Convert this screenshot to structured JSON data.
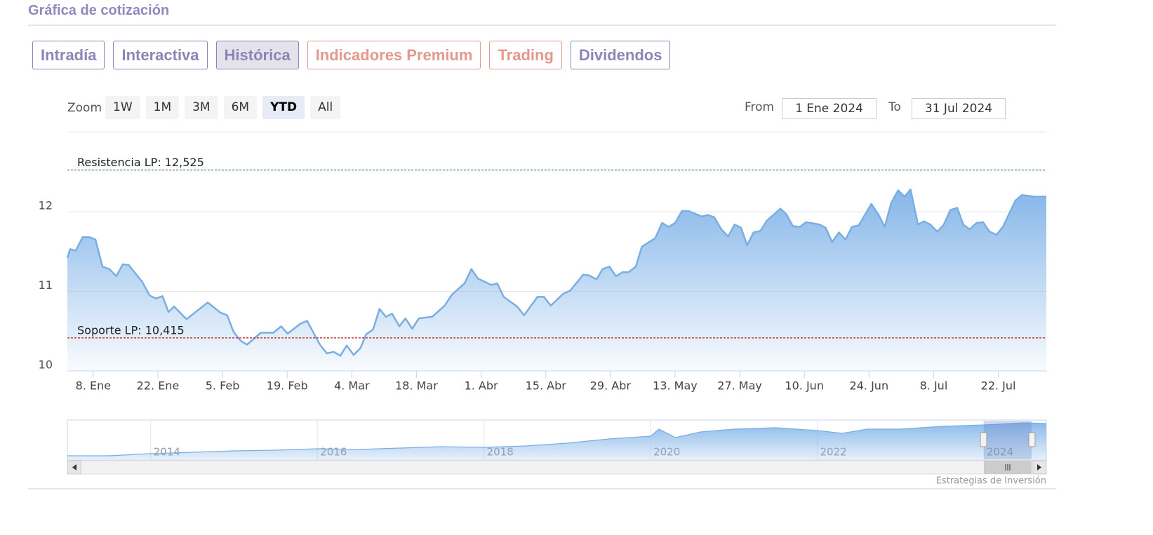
{
  "header": {
    "title": "Gráfica de cotización"
  },
  "tabs": [
    {
      "label": "Intradía",
      "color": "#8b86b8"
    },
    {
      "label": "Interactiva",
      "color": "#8b86b8"
    },
    {
      "label": "Histórica",
      "color": "#8b86b8"
    },
    {
      "label": "Indicadores Premium",
      "color": "#e3998e"
    },
    {
      "label": "Trading",
      "color": "#e3998e"
    },
    {
      "label": "Dividendos",
      "color": "#8b86b8"
    }
  ],
  "active_tab": 2,
  "range_selector": {
    "zoom_label": "Zoom",
    "buttons": [
      "1W",
      "1M",
      "3M",
      "6M",
      "YTD",
      "All"
    ],
    "selected": 4,
    "from_label": "From",
    "from": "1 Ene 2024",
    "to_label": "To",
    "to": "31 Jul 2024"
  },
  "chart_data": {
    "type": "area",
    "x": [
      2.4,
      3.0,
      4.2,
      5.7,
      7.2,
      8.5,
      10.0,
      11.5,
      13.0,
      14.4,
      15.7,
      18.6,
      20.2,
      21.5,
      23.0,
      24.3,
      25.5,
      28.2,
      32.8,
      35.6,
      37.0,
      38.4,
      39.9,
      41.3,
      44.3,
      47.0,
      48.7,
      50.1,
      52.8,
      54.3,
      57.1,
      58.6,
      60.1,
      61.5,
      62.9,
      64.4,
      65.9,
      67.1,
      68.6,
      70.0,
      71.4,
      72.7,
      74.3,
      75.6,
      77.1,
      78.5,
      81.4,
      84.1,
      85.7,
      88.4,
      89.9,
      91.3,
      94.2,
      95.5,
      96.9,
      99.8,
      101.3,
      104.2,
      105.6,
      107.1,
      109.8,
      111.3,
      114.1,
      115.4,
      117.0,
      118.3,
      119.8,
      121.2,
      122.6,
      123.9,
      125.5,
      126.8,
      129.7,
      131.2,
      132.6,
      134.0,
      135.5,
      136.9,
      139.8,
      141.1,
      142.5,
      144.0,
      145.5,
      146.9,
      148.3,
      149.6,
      151.0,
      152.5,
      153.9,
      156.8,
      158.1,
      159.5,
      161.0,
      162.4,
      165.3,
      166.6,
      168.0,
      169.5,
      170.9,
      172.3,
      173.8,
      176.5,
      178.1,
      179.4,
      180.8,
      182.3,
      183.7,
      185.0,
      186.6,
      187.9,
      189.3,
      190.8,
      192.2,
      193.6,
      195.1,
      196.4,
      197.8,
      199.3,
      200.7,
      202.1,
      203.6,
      205.0,
      206.3,
      207.7,
      209.1,
      211.9,
      214.4
    ],
    "series": [
      {
        "color": "#7aaee3",
        "values": [
          11.42,
          11.53,
          11.51,
          11.68,
          11.68,
          11.65,
          11.31,
          11.28,
          11.19,
          11.34,
          11.33,
          11.12,
          10.95,
          10.91,
          10.94,
          10.74,
          10.81,
          10.65,
          10.86,
          10.73,
          10.7,
          10.49,
          10.38,
          10.33,
          10.48,
          10.48,
          10.56,
          10.47,
          10.59,
          10.63,
          10.33,
          10.22,
          10.24,
          10.19,
          10.32,
          10.2,
          10.29,
          10.46,
          10.52,
          10.78,
          10.68,
          10.72,
          10.56,
          10.66,
          10.53,
          10.66,
          10.68,
          10.82,
          10.96,
          11.1,
          11.28,
          11.16,
          11.08,
          11.1,
          10.93,
          10.81,
          10.7,
          10.93,
          10.93,
          10.82,
          10.97,
          11.01,
          11.21,
          11.2,
          11.15,
          11.28,
          11.31,
          11.19,
          11.24,
          11.24,
          11.31,
          11.56,
          11.67,
          11.86,
          11.81,
          11.86,
          12.01,
          12.01,
          11.94,
          11.96,
          11.93,
          11.78,
          11.69,
          11.84,
          11.8,
          11.58,
          11.74,
          11.76,
          11.89,
          12.04,
          11.97,
          11.82,
          11.81,
          11.87,
          11.84,
          11.8,
          11.62,
          11.74,
          11.65,
          11.81,
          11.83,
          12.1,
          11.96,
          11.81,
          12.11,
          12.27,
          12.19,
          12.28,
          11.84,
          11.88,
          11.84,
          11.75,
          11.84,
          12.02,
          12.05,
          11.84,
          11.78,
          11.86,
          11.87,
          11.75,
          11.71,
          11.81,
          11.97,
          12.14,
          12.21,
          12.19,
          12.19
        ]
      }
    ],
    "xlim": [
      2.4,
      214.4
    ],
    "xticks": [
      {
        "value": 8,
        "label": "8. Ene"
      },
      {
        "value": 22,
        "label": "22. Ene"
      },
      {
        "value": 36,
        "label": "5. Feb"
      },
      {
        "value": 50,
        "label": "19. Feb"
      },
      {
        "value": 64,
        "label": "4. Mar"
      },
      {
        "value": 78,
        "label": "18. Mar"
      },
      {
        "value": 92,
        "label": "1. Abr"
      },
      {
        "value": 106,
        "label": "15. Abr"
      },
      {
        "value": 120,
        "label": "29. Abr"
      },
      {
        "value": 134,
        "label": "13. May"
      },
      {
        "value": 148,
        "label": "27. May"
      },
      {
        "value": 162,
        "label": "10. Jun"
      },
      {
        "value": 176,
        "label": "24. Jun"
      },
      {
        "value": 190,
        "label": "8. Jul"
      },
      {
        "value": 204,
        "label": "22. Jul"
      }
    ],
    "ylim": [
      10,
      13
    ],
    "yticks": [
      10,
      11,
      12
    ],
    "grid": true,
    "plot_lines": [
      {
        "label": "Resistencia LP: 12,525",
        "value": 12.525,
        "color": "#2e7d32"
      },
      {
        "label": "Soporte LP: 10,415",
        "value": 10.415,
        "color": "#b71c1c"
      }
    ],
    "navigator": {
      "x": [
        2013.0,
        2013.5,
        2014.0,
        2014.5,
        2015.0,
        2015.5,
        2016.0,
        2016.5,
        2017.0,
        2017.5,
        2018.0,
        2018.5,
        2019.0,
        2019.5,
        2020.0,
        2020.1,
        2020.3,
        2020.6,
        2021.0,
        2021.5,
        2022.0,
        2022.3,
        2022.6,
        2023.0,
        2023.5,
        2024.0,
        2024.5,
        2024.75
      ],
      "values": [
        1.18,
        1.18,
        1.89,
        2.36,
        2.84,
        3.07,
        3.55,
        3.31,
        3.78,
        4.25,
        4.02,
        4.49,
        5.44,
        6.85,
        7.8,
        10.16,
        7.33,
        9.22,
        10.16,
        10.64,
        9.69,
        8.75,
        10.16,
        10.16,
        11.11,
        11.58,
        12.29,
        12.05
      ],
      "xlim": [
        2013.0,
        2024.75
      ],
      "ylim": [
        0,
        13
      ],
      "xticks": [
        2014,
        2016,
        2018,
        2020,
        2022,
        2024
      ]
    }
  },
  "credits": "Estrategias de Inversión"
}
